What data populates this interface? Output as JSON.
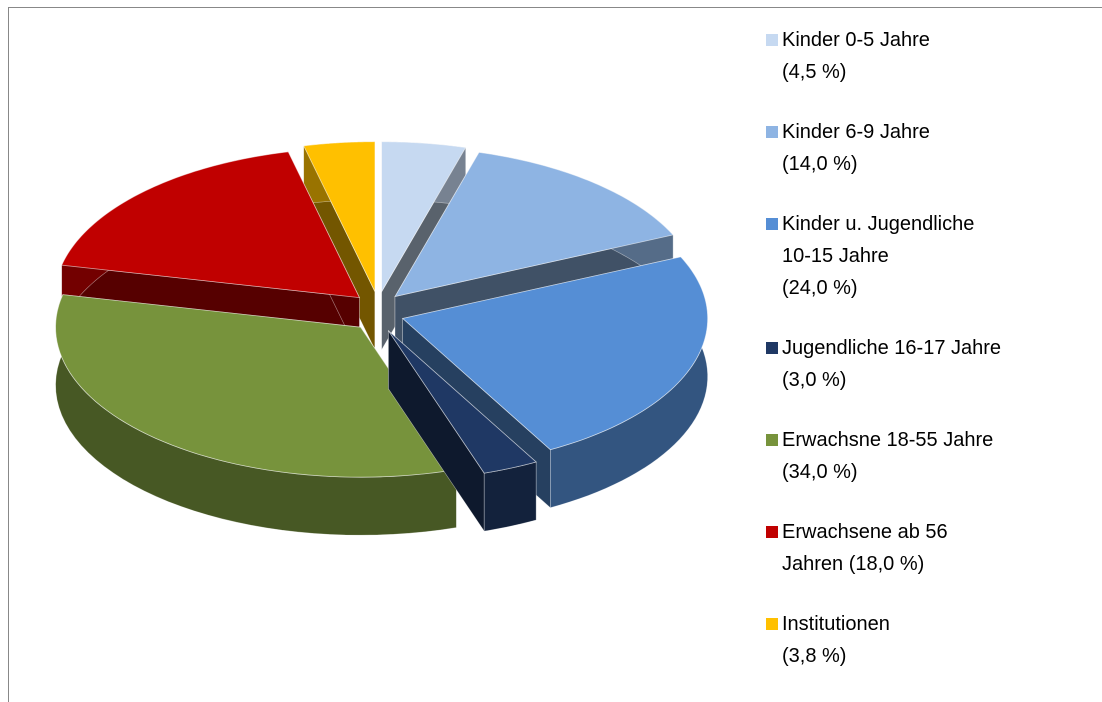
{
  "chart_data": {
    "type": "pie",
    "three_d": true,
    "exploded": true,
    "categories": [
      "Kinder 0-5 Jahre\n(4,5 %)",
      "Kinder 6-9 Jahre\n(14,0 %)",
      "Kinder u. Jugendliche\n10-15 Jahre\n(24,0 %)",
      "Jugendliche 16-17 Jahre\n(3,0 %)",
      "Erwachsne 18-55 Jahre\n(34,0 %)",
      "Erwachsene ab 56\nJahren (18,0 %)",
      "Institutionen\n(3,8 %)"
    ],
    "values": [
      4.5,
      14.0,
      24.0,
      3.0,
      34.0,
      18.0,
      3.8
    ],
    "colors": [
      "#c6d9f1",
      "#8eb4e3",
      "#558ed5",
      "#1f3864",
      "#77933c",
      "#c00000",
      "#ffc000"
    ],
    "legend": "right"
  }
}
